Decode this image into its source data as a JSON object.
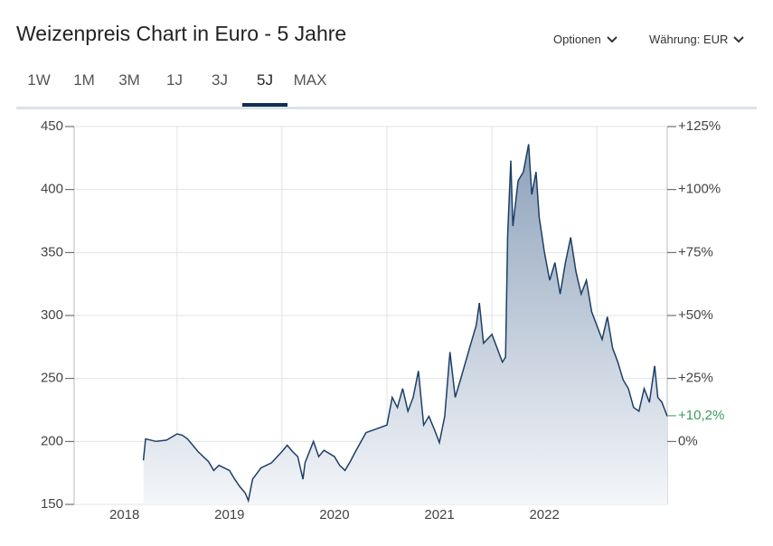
{
  "header": {
    "title": "Weizenpreis Chart in Euro - 5 Jahre",
    "options": "Optionen",
    "currency": "Währung: EUR"
  },
  "tabs": {
    "items": [
      "1W",
      "1M",
      "3M",
      "1J",
      "3J",
      "5J",
      "MAX"
    ],
    "selected": 5
  },
  "chart_data": {
    "type": "area",
    "color": "#1c3f66",
    "x": [
      2018.18,
      2018.2,
      2018.3,
      2018.4,
      2018.5,
      2018.55,
      2018.6,
      2018.7,
      2018.8,
      2018.85,
      2018.9,
      2019.0,
      2019.05,
      2019.1,
      2019.15,
      2019.18,
      2019.22,
      2019.3,
      2019.4,
      2019.5,
      2019.55,
      2019.6,
      2019.65,
      2019.7,
      2019.72,
      2019.8,
      2019.85,
      2019.9,
      2020.0,
      2020.05,
      2020.1,
      2020.15,
      2020.2,
      2020.3,
      2020.4,
      2020.5,
      2020.55,
      2020.6,
      2020.65,
      2020.7,
      2020.75,
      2020.8,
      2020.85,
      2020.9,
      2020.95,
      2021.0,
      2021.05,
      2021.1,
      2021.15,
      2021.2,
      2021.3,
      2021.35,
      2021.38,
      2021.42,
      2021.5,
      2021.55,
      2021.6,
      2021.63,
      2021.65,
      2021.68,
      2021.7,
      2021.75,
      2021.8,
      2021.85,
      2021.88,
      2021.92,
      2021.95,
      2022.0,
      2022.05,
      2022.1,
      2022.15,
      2022.2,
      2022.25,
      2022.3,
      2022.35,
      2022.4,
      2022.45,
      2022.5,
      2022.55,
      2022.6,
      2022.65,
      2022.7,
      2022.75,
      2022.8,
      2022.85,
      2022.9,
      2022.95,
      2023.0,
      2023.05,
      2023.08,
      2023.12,
      2023.17
    ],
    "values": [
      185,
      202,
      200,
      201,
      206,
      205,
      202,
      192,
      184,
      177,
      181,
      177,
      170,
      164,
      159,
      153,
      170,
      179,
      183,
      192,
      197,
      192,
      188,
      170,
      183,
      200,
      188,
      193,
      188,
      181,
      177,
      184,
      192,
      207,
      210,
      213,
      235,
      227,
      242,
      224,
      235,
      256,
      213,
      220,
      210,
      199,
      220,
      271,
      235,
      249,
      278,
      292,
      310,
      278,
      285,
      274,
      263,
      267,
      364,
      423,
      371,
      407,
      414,
      436,
      396,
      414,
      378,
      350,
      328,
      342,
      317,
      342,
      362,
      335,
      317,
      328,
      303,
      292,
      281,
      299,
      274,
      263,
      249,
      242,
      227,
      224,
      242,
      231,
      260,
      235,
      231,
      220
    ],
    "xlim": [
      2017.52,
      2023.17
    ],
    "xticks": [
      2018,
      2019,
      2020,
      2021,
      2022
    ],
    "x_grid": [
      2018.5,
      2019.5,
      2020.5,
      2021.5,
      2022.5
    ],
    "ylim": [
      150,
      450
    ],
    "yticks": [
      150,
      200,
      250,
      300,
      350,
      400,
      450
    ],
    "y2lim": [
      -25,
      125
    ],
    "y2ticks": [
      {
        "value": 0,
        "label": "0%"
      },
      {
        "value": 25,
        "label": "+25%"
      },
      {
        "value": 50,
        "label": "+50%"
      },
      {
        "value": 75,
        "label": "+75%"
      },
      {
        "value": 100,
        "label": "+100%"
      },
      {
        "value": 125,
        "label": "+125%"
      }
    ],
    "change": {
      "value": 10.2,
      "label": "+10,2%",
      "color": "#3a9a5b"
    },
    "grid": true
  }
}
